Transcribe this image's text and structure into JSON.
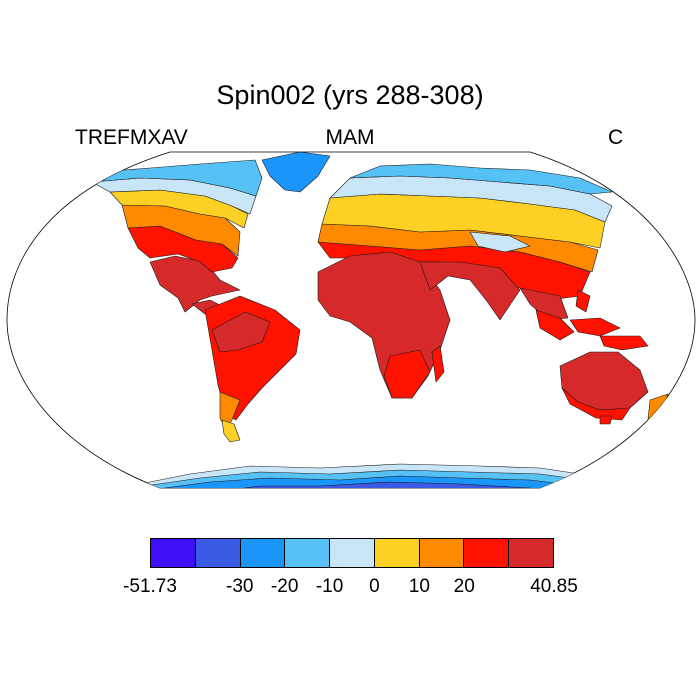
{
  "title": "Spin002 (yrs 288-308)",
  "subtitle_left": "TREFMXAV",
  "subtitle_center": "MAM",
  "subtitle_right": "C",
  "colorbar": {
    "colors": [
      "#3e10f5",
      "#3b5be6",
      "#1a96fa",
      "#56c1f5",
      "#c9e6f8",
      "#fdd124",
      "#ff8a00",
      "#ff1200",
      "#d62a2a"
    ],
    "labels": [
      "-51.73",
      "-30",
      "-20",
      "-10",
      "0",
      "10",
      "20",
      "40.85"
    ]
  }
}
